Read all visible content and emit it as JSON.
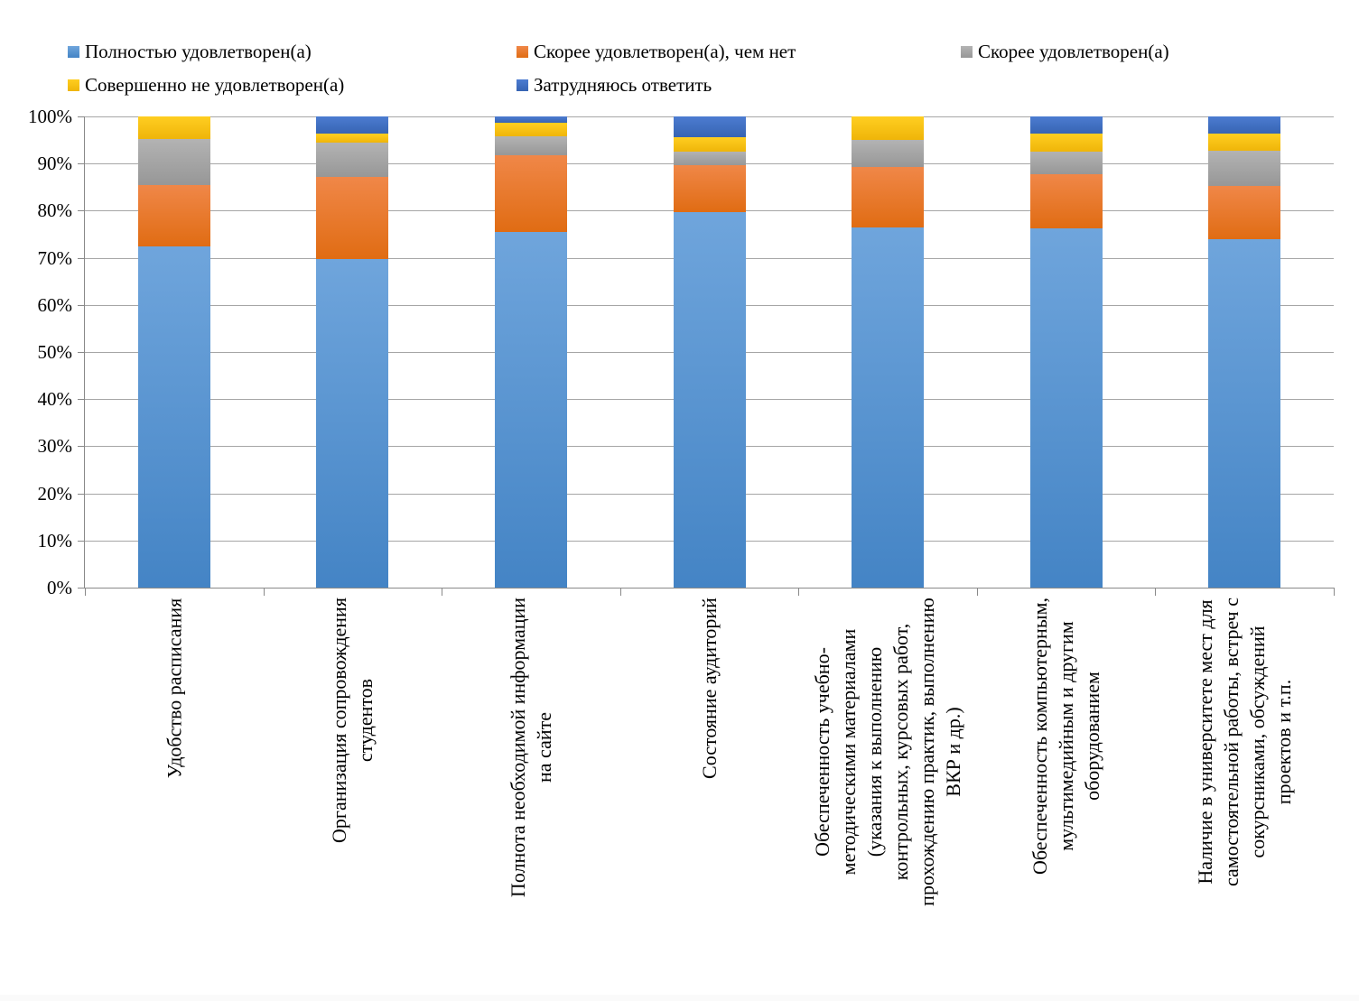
{
  "chart_data": {
    "type": "bar",
    "variant": "100%-stacked-column",
    "title": "",
    "xlabel": "",
    "ylabel": "",
    "ylim": [
      0,
      100
    ],
    "grid": true,
    "legend_position": "top",
    "y_ticks": [
      "0%",
      "10%",
      "20%",
      "30%",
      "40%",
      "50%",
      "60%",
      "70%",
      "80%",
      "90%",
      "100%"
    ],
    "categories": [
      "Удобство расписания",
      "Организация сопровождения\nстудентов",
      "Полнота необходимой информации\nна сайте",
      "Состояние аудиторий",
      "Обеспеченность учебно-\nметодическими материалами\n(указания к выполнению\nконтрольных, курсовых работ,\nпрохождению практик, выполнению\nВКР и др.)",
      "Обеспеченность компьютерным,\nмультимедийным и другим\nоборудованием",
      "Наличие в университете мест для\nсамостоятельной работы, встреч с\nсокурсниками, обсуждений\nпроектов и т.п."
    ],
    "series": [
      {
        "name": "Полностью удовлетворен(а)",
        "color": "#5B9BD5",
        "color_light": "#6FA5DC",
        "color_dark": "#4484C5",
        "values": [
          72.4,
          69.7,
          75.5,
          79.6,
          76.4,
          76.3,
          74.0
        ]
      },
      {
        "name": "Скорее удовлетворен(а), чем нет",
        "color": "#ED7D31",
        "color_light": "#F08748",
        "color_dark": "#E06C13",
        "values": [
          13.0,
          17.5,
          16.3,
          10.0,
          12.9,
          11.5,
          11.3
        ]
      },
      {
        "name": "Скорее удовлетворен(а)",
        "color": "#A5A5A5",
        "color_light": "#B3B3B3",
        "color_dark": "#979797",
        "values": [
          9.8,
          7.2,
          4.0,
          2.9,
          5.7,
          4.8,
          7.4
        ]
      },
      {
        "name": "Совершенно не удовлетворен(а)",
        "color": "#FFC000",
        "color_light": "#FFCE21",
        "color_dark": "#EFB509",
        "values": [
          4.8,
          2.0,
          2.9,
          3.1,
          5.0,
          3.7,
          3.6
        ]
      },
      {
        "name": "Затрудняюсь ответить",
        "color": "#4472C4",
        "color_light": "#4C7CD1",
        "color_dark": "#3764B3",
        "values": [
          0,
          3.6,
          1.3,
          4.4,
          0,
          3.7,
          3.7
        ]
      }
    ],
    "axis_color": "#898989",
    "gridline_color": "#A6A6A6"
  }
}
